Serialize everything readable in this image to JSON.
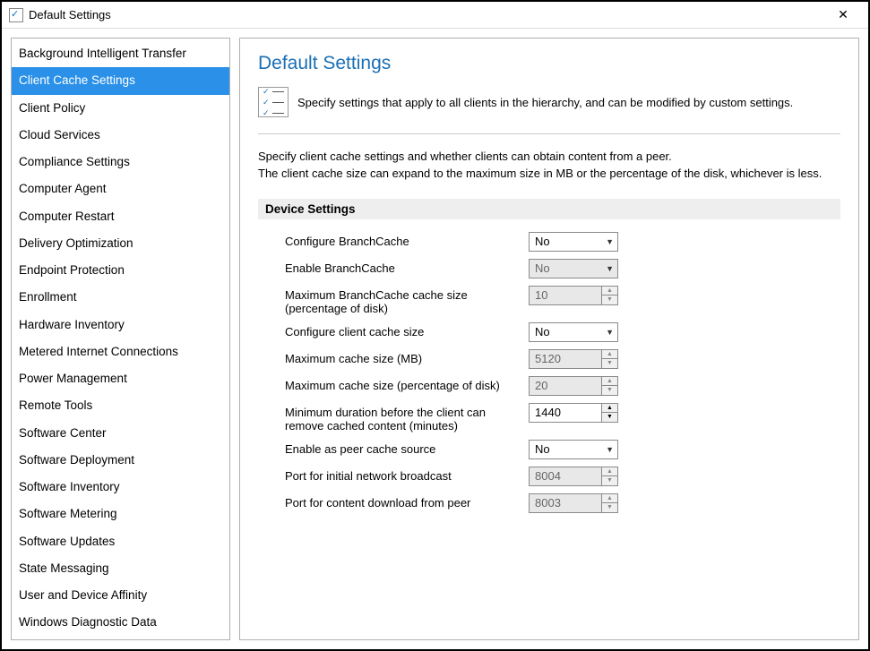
{
  "window": {
    "title": "Default Settings"
  },
  "sidebar": {
    "selected_index": 1,
    "items": [
      "Background Intelligent Transfer",
      "Client Cache Settings",
      "Client Policy",
      "Cloud Services",
      "Compliance Settings",
      "Computer Agent",
      "Computer Restart",
      "Delivery Optimization",
      "Endpoint Protection",
      "Enrollment",
      "Hardware Inventory",
      "Metered Internet Connections",
      "Power Management",
      "Remote Tools",
      "Software Center",
      "Software Deployment",
      "Software Inventory",
      "Software Metering",
      "Software Updates",
      "State Messaging",
      "User and Device Affinity",
      "Windows Diagnostic Data"
    ]
  },
  "main": {
    "title": "Default Settings",
    "intro": "Specify settings that apply to all clients in the hierarchy, and can be modified by custom settings.",
    "description_line1": "Specify client cache settings and whether clients can obtain content from a peer.",
    "description_line2": "The client cache size can expand to the maximum size in MB or the percentage of the disk, whichever is less.",
    "section_header": "Device Settings",
    "settings": [
      {
        "label": "Configure BranchCache",
        "type": "combo",
        "value": "No",
        "disabled": false
      },
      {
        "label": "Enable BranchCache",
        "type": "combo",
        "value": "No",
        "disabled": true
      },
      {
        "label": "Maximum BranchCache cache size (percentage of disk)",
        "type": "spinner",
        "value": "10",
        "disabled": true
      },
      {
        "label": "Configure client cache size",
        "type": "combo",
        "value": "No",
        "disabled": false
      },
      {
        "label": "Maximum cache size (MB)",
        "type": "spinner",
        "value": "5120",
        "disabled": true
      },
      {
        "label": "Maximum cache size (percentage of disk)",
        "type": "spinner",
        "value": "20",
        "disabled": true
      },
      {
        "label": "Minimum duration before the client can remove cached content (minutes)",
        "type": "spinner",
        "value": "1440",
        "disabled": false
      },
      {
        "label": "Enable as peer cache source",
        "type": "combo",
        "value": "No",
        "disabled": false
      },
      {
        "label": "Port for initial network broadcast",
        "type": "spinner",
        "value": "8004",
        "disabled": true
      },
      {
        "label": "Port for content download from peer",
        "type": "spinner",
        "value": "8003",
        "disabled": true
      }
    ]
  },
  "colors": {
    "selection_bg": "#2a90e8",
    "title_color": "#1a6fb5",
    "border": "#b0b0b0",
    "disabled_bg": "#e8e8e8"
  }
}
